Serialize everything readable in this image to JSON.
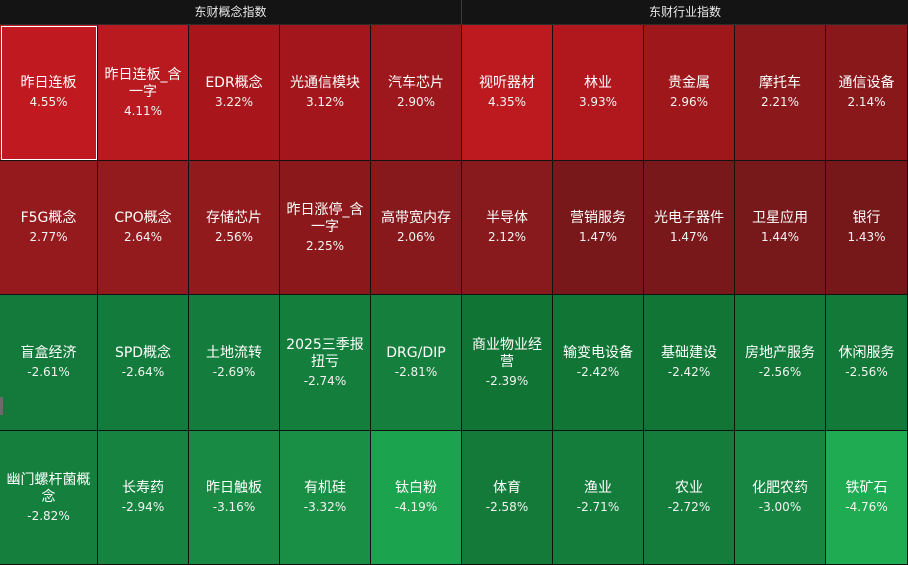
{
  "header": {
    "left_title": "东财概念指数",
    "right_title": "东财行业指数"
  },
  "rows": [
    [
      {
        "name": "昨日连板",
        "pct": "4.55%",
        "color": "#c0191f",
        "selected": true
      },
      {
        "name": "昨日连板_含一字",
        "pct": "4.11%",
        "color": "#b81a1f"
      },
      {
        "name": "EDR概念",
        "pct": "3.22%",
        "color": "#a8161b"
      },
      {
        "name": "光通信模块",
        "pct": "3.12%",
        "color": "#a3171c"
      },
      {
        "name": "汽车芯片",
        "pct": "2.90%",
        "color": "#9c181c"
      },
      {
        "name": "视听器材",
        "pct": "4.35%",
        "color": "#bd1a20"
      },
      {
        "name": "林业",
        "pct": "3.93%",
        "color": "#b0181d"
      },
      {
        "name": "贵金属",
        "pct": "2.96%",
        "color": "#9e171b"
      },
      {
        "name": "摩托车",
        "pct": "2.21%",
        "color": "#8b181b"
      },
      {
        "name": "通信设备",
        "pct": "2.14%",
        "color": "#89181b"
      }
    ],
    [
      {
        "name": "F5G概念",
        "pct": "2.77%",
        "color": "#951a1d"
      },
      {
        "name": "CPO概念",
        "pct": "2.64%",
        "color": "#931a1d"
      },
      {
        "name": "存储芯片",
        "pct": "2.56%",
        "color": "#911a1d"
      },
      {
        "name": "昨日涨停_含一字",
        "pct": "2.25%",
        "color": "#8b191c"
      },
      {
        "name": "高带宽内存",
        "pct": "2.06%",
        "color": "#87191c"
      },
      {
        "name": "半导体",
        "pct": "2.12%",
        "color": "#88191c"
      },
      {
        "name": "营销服务",
        "pct": "1.47%",
        "color": "#78181a"
      },
      {
        "name": "光电子器件",
        "pct": "1.47%",
        "color": "#78181a"
      },
      {
        "name": "卫星应用",
        "pct": "1.44%",
        "color": "#77181a"
      },
      {
        "name": "银行",
        "pct": "1.43%",
        "color": "#76181a"
      }
    ],
    [
      {
        "name": "盲盒经济",
        "pct": "-2.61%",
        "color": "#137a3b"
      },
      {
        "name": "SPD概念",
        "pct": "-2.64%",
        "color": "#137b3b"
      },
      {
        "name": "土地流转",
        "pct": "-2.69%",
        "color": "#147c3c"
      },
      {
        "name": "2025三季报扭亏",
        "pct": "-2.74%",
        "color": "#147e3c"
      },
      {
        "name": "DRG/DIP",
        "pct": "-2.81%",
        "color": "#157f3d"
      },
      {
        "name": "商业物业经营",
        "pct": "-2.39%",
        "color": "#107434"
      },
      {
        "name": "输变电设备",
        "pct": "-2.42%",
        "color": "#117535"
      },
      {
        "name": "基础建设",
        "pct": "-2.42%",
        "color": "#117535"
      },
      {
        "name": "房地产服务",
        "pct": "-2.56%",
        "color": "#127938"
      },
      {
        "name": "休闲服务",
        "pct": "-2.56%",
        "color": "#127938"
      }
    ],
    [
      {
        "name": "幽门螺杆菌概念",
        "pct": "-2.82%",
        "color": "#15803d"
      },
      {
        "name": "长寿药",
        "pct": "-2.94%",
        "color": "#168440"
      },
      {
        "name": "昨日触板",
        "pct": "-3.16%",
        "color": "#188a43"
      },
      {
        "name": "有机硅",
        "pct": "-3.32%",
        "color": "#198e45"
      },
      {
        "name": "钛白粉",
        "pct": "-4.19%",
        "color": "#1ca34e"
      },
      {
        "name": "体育",
        "pct": "-2.58%",
        "color": "#137a3a"
      },
      {
        "name": "渔业",
        "pct": "-2.71%",
        "color": "#147d3c"
      },
      {
        "name": "农业",
        "pct": "-2.72%",
        "color": "#147d3c"
      },
      {
        "name": "化肥农药",
        "pct": "-3.00%",
        "color": "#178642"
      },
      {
        "name": "铁矿石",
        "pct": "-4.76%",
        "color": "#1eab52"
      }
    ]
  ]
}
